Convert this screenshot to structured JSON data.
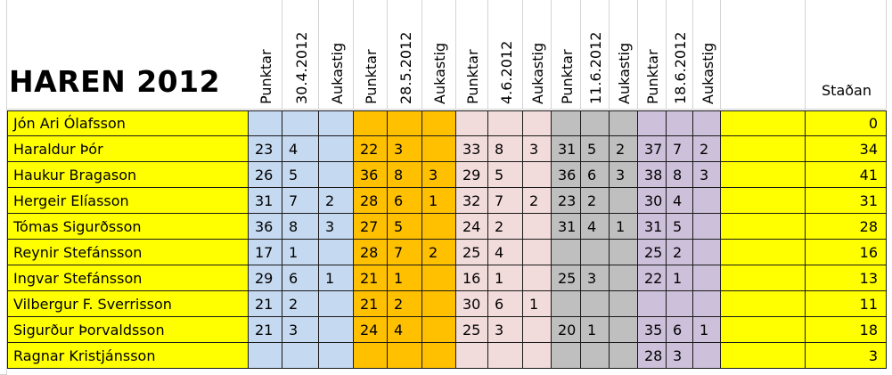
{
  "title": "HAREN 2012",
  "stadan_label": "Staðan",
  "column_groups": [
    {
      "date": "30.4.2012",
      "color": "#c5d9f1"
    },
    {
      "date": "28.5.2012",
      "color": "#ffc000"
    },
    {
      "date": "4.6.2012",
      "color": "#f2dcdb"
    },
    {
      "date": "11.6.2012",
      "color": "#bfbfbf"
    },
    {
      "date": "18.6.2012",
      "color": "#ccc0da"
    }
  ],
  "header_labels": {
    "points": "Punktar",
    "extra": "Aukastig"
  },
  "colors": {
    "name_col": "#ffff00",
    "grid_line": "#1a1a1a",
    "empty_col": "#ffff00",
    "total_col": "#ffff00"
  },
  "rows": [
    {
      "name": "Jón Ari Ólafsson",
      "cells": [
        [
          "",
          "",
          ""
        ],
        [
          "",
          "",
          ""
        ],
        [
          "",
          "",
          ""
        ],
        [
          "",
          "",
          ""
        ],
        [
          "",
          "",
          ""
        ]
      ],
      "total": "0"
    },
    {
      "name": "Haraldur Þór",
      "cells": [
        [
          "23",
          "4",
          ""
        ],
        [
          "22",
          "3",
          ""
        ],
        [
          "33",
          "8",
          "3"
        ],
        [
          "31",
          "5",
          "2"
        ],
        [
          "37",
          "7",
          "2"
        ]
      ],
      "total": "34"
    },
    {
      "name": "Haukur Bragason",
      "cells": [
        [
          "26",
          "5",
          ""
        ],
        [
          "36",
          "8",
          "3"
        ],
        [
          "29",
          "5",
          ""
        ],
        [
          "36",
          "6",
          "3"
        ],
        [
          "38",
          "8",
          "3"
        ]
      ],
      "total": "41"
    },
    {
      "name": "Hergeir Elíasson",
      "cells": [
        [
          "31",
          "7",
          "2"
        ],
        [
          "28",
          "6",
          "1"
        ],
        [
          "32",
          "7",
          "2"
        ],
        [
          "23",
          "2",
          ""
        ],
        [
          "30",
          "4",
          ""
        ]
      ],
      "total": "31"
    },
    {
      "name": "Tómas Sigurðsson",
      "cells": [
        [
          "36",
          "8",
          "3"
        ],
        [
          "27",
          "5",
          ""
        ],
        [
          "24",
          "2",
          ""
        ],
        [
          "31",
          "4",
          "1"
        ],
        [
          "31",
          "5",
          ""
        ]
      ],
      "total": "28"
    },
    {
      "name": "Reynir Stefánsson",
      "cells": [
        [
          "17",
          "1",
          ""
        ],
        [
          "28",
          "7",
          "2"
        ],
        [
          "25",
          "4",
          ""
        ],
        [
          "",
          "",
          ""
        ],
        [
          "25",
          "2",
          ""
        ]
      ],
      "total": "16"
    },
    {
      "name": "Ingvar Stefánsson",
      "cells": [
        [
          "29",
          "6",
          "1"
        ],
        [
          "21",
          "1",
          ""
        ],
        [
          "16",
          "1",
          ""
        ],
        [
          "25",
          "3",
          ""
        ],
        [
          "22",
          "1",
          ""
        ]
      ],
      "total": "13"
    },
    {
      "name": "Vilbergur F. Sverrisson",
      "cells": [
        [
          "21",
          "2",
          ""
        ],
        [
          "21",
          "2",
          ""
        ],
        [
          "30",
          "6",
          "1"
        ],
        [
          "",
          "",
          ""
        ],
        [
          "",
          "",
          ""
        ]
      ],
      "total": "11"
    },
    {
      "name": "Sigurður Þorvaldsson",
      "cells": [
        [
          "21",
          "3",
          ""
        ],
        [
          "24",
          "4",
          ""
        ],
        [
          "25",
          "3",
          ""
        ],
        [
          "20",
          "1",
          ""
        ],
        [
          "35",
          "6",
          "1"
        ]
      ],
      "total": "18"
    },
    {
      "name": "Ragnar Kristjánsson",
      "cells": [
        [
          "",
          "",
          ""
        ],
        [
          "",
          "",
          ""
        ],
        [
          "",
          "",
          ""
        ],
        [
          "",
          "",
          ""
        ],
        [
          "28",
          "3",
          ""
        ]
      ],
      "total": "3"
    }
  ]
}
